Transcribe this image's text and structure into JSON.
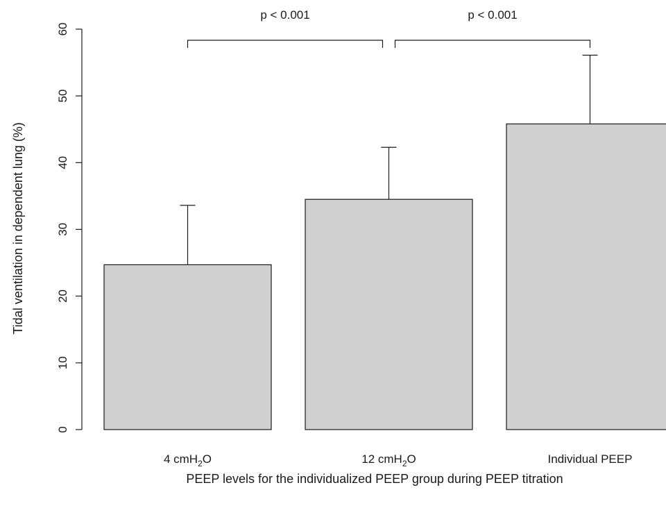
{
  "chart_data": {
    "type": "bar",
    "categories": [
      {
        "label": "4 cmH",
        "sub": "2",
        "suffix": "O"
      },
      {
        "label": "12 cmH",
        "sub": "2",
        "suffix": "O"
      },
      {
        "label": "Individual PEEP",
        "sub": "",
        "suffix": ""
      }
    ],
    "values": [
      24.7,
      34.5,
      45.8
    ],
    "error_upper": [
      33.6,
      42.3,
      56.1
    ],
    "ylabel": "Tidal ventilation in dependent lung (%)",
    "xlabel": "PEEP levels for the individualized PEEP group during PEEP titration",
    "ylim": [
      0,
      60
    ],
    "yticks": [
      "0",
      "10",
      "20",
      "30",
      "40",
      "50",
      "60"
    ],
    "bar_color": "#d0d0d2",
    "comparisons": [
      {
        "from": 0,
        "to": 1,
        "label": "p < 0.001"
      },
      {
        "from": 1,
        "to": 2,
        "label": "p < 0.001"
      }
    ]
  }
}
